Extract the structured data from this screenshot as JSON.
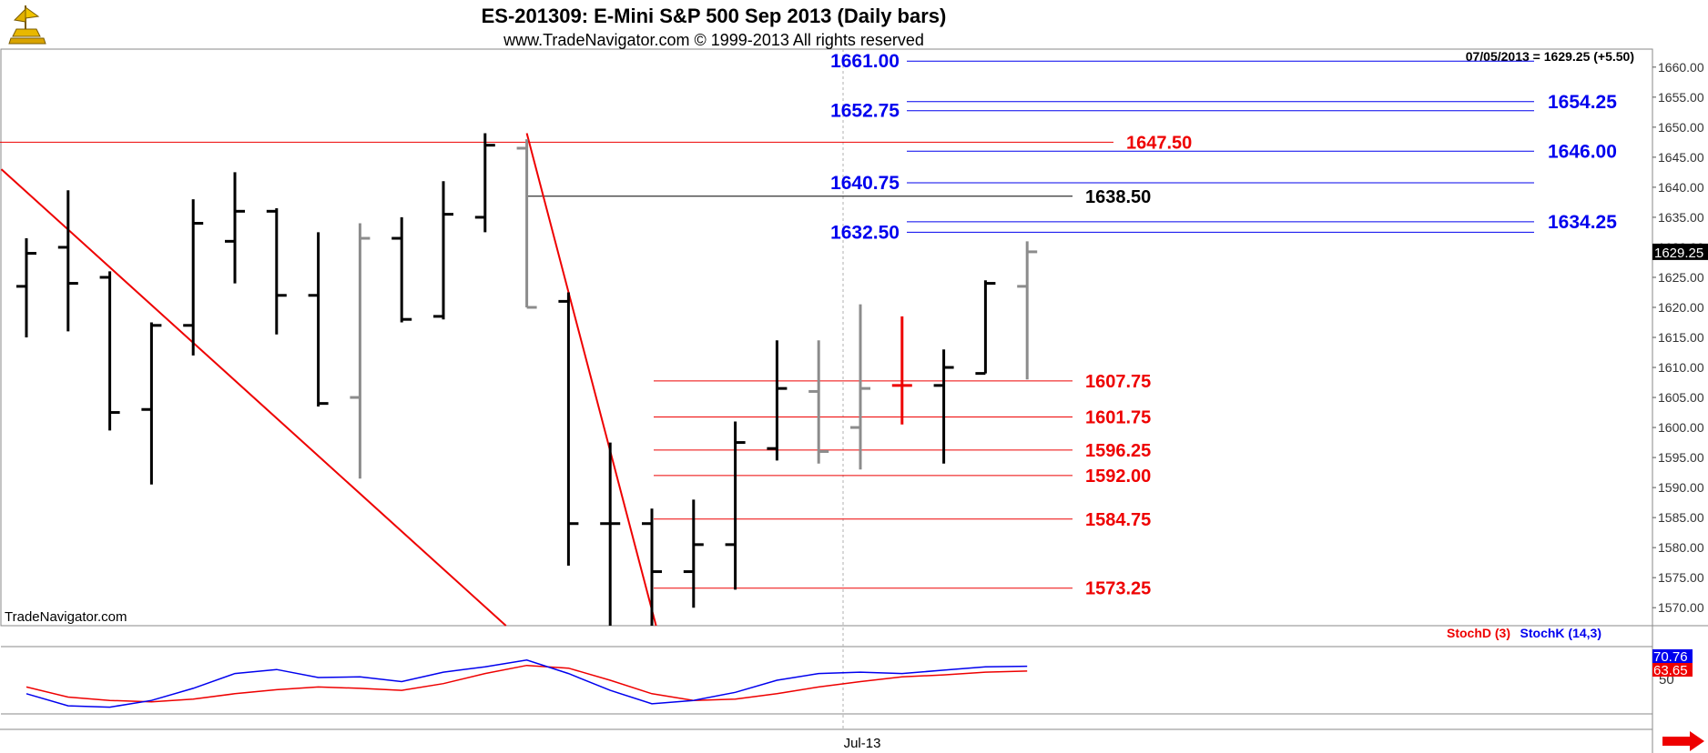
{
  "header": {
    "title": "ES-201309:  E-Mini S&P 500 Sep 2013  (Daily bars)",
    "subtitle": "www.TradeNavigator.com © 1999-2013 All rights reserved",
    "last_quote": "07/05/2013 = 1629.25 (+5.50)",
    "watermark": "TradeNavigator.com"
  },
  "chart_data": [
    {
      "type": "ohlc",
      "ylim": [
        1567,
        1663
      ],
      "y_ticks": [
        1570,
        1575,
        1580,
        1585,
        1590,
        1595,
        1600,
        1605,
        1610,
        1615,
        1620,
        1625,
        1630,
        1635,
        1640,
        1645,
        1650,
        1655,
        1660
      ],
      "y_tick_labels": [
        "1570.00",
        "1575.00",
        "1580.00",
        "1585.00",
        "1590.00",
        "1595.00",
        "1600.00",
        "1605.00",
        "1610.00",
        "1615.00",
        "1620.00",
        "1625.00",
        "1630.00",
        "1635.00",
        "1640.00",
        "1645.00",
        "1650.00",
        "1655.00",
        "1660.00"
      ],
      "x_tick_label": "Jul-13",
      "last_price_label": "1629.25",
      "bars": [
        {
          "o": 1623.5,
          "h": 1631.5,
          "l": 1615.0,
          "c": 1629.0,
          "color": "black"
        },
        {
          "o": 1630.0,
          "h": 1639.5,
          "l": 1616.0,
          "c": 1624.0,
          "color": "black"
        },
        {
          "o": 1625.0,
          "h": 1626.0,
          "l": 1599.5,
          "c": 1602.5,
          "color": "black"
        },
        {
          "o": 1603.0,
          "h": 1617.5,
          "l": 1590.5,
          "c": 1617.0,
          "color": "black"
        },
        {
          "o": 1617.0,
          "h": 1638.0,
          "l": 1612.0,
          "c": 1634.0,
          "color": "black"
        },
        {
          "o": 1631.0,
          "h": 1642.5,
          "l": 1624.0,
          "c": 1636.0,
          "color": "black"
        },
        {
          "o": 1636.0,
          "h": 1636.5,
          "l": 1615.5,
          "c": 1622.0,
          "color": "black"
        },
        {
          "o": 1622.0,
          "h": 1632.5,
          "l": 1603.5,
          "c": 1604.0,
          "color": "black"
        },
        {
          "o": 1605.0,
          "h": 1634.0,
          "l": 1591.5,
          "c": 1631.5,
          "color": "gray"
        },
        {
          "o": 1631.5,
          "h": 1635.0,
          "l": 1617.5,
          "c": 1618.0,
          "color": "black"
        },
        {
          "o": 1618.5,
          "h": 1641.0,
          "l": 1618.0,
          "c": 1635.5,
          "color": "black"
        },
        {
          "o": 1635.0,
          "h": 1649.0,
          "l": 1632.5,
          "c": 1647.0,
          "color": "black"
        },
        {
          "o": 1646.5,
          "h": 1648.0,
          "l": 1620.0,
          "c": 1620.0,
          "color": "gray"
        },
        {
          "o": 1621.0,
          "h": 1622.5,
          "l": 1577.0,
          "c": 1584.0,
          "color": "black"
        },
        {
          "o": 1584.0,
          "h": 1597.5,
          "l": 1565.0,
          "c": 1584.0,
          "color": "black"
        },
        {
          "o": 1584.0,
          "h": 1586.5,
          "l": 1562.0,
          "c": 1576.0,
          "color": "black"
        },
        {
          "o": 1576.0,
          "h": 1588.0,
          "l": 1570.0,
          "c": 1580.5,
          "color": "black"
        },
        {
          "o": 1580.5,
          "h": 1601.0,
          "l": 1573.0,
          "c": 1597.5,
          "color": "black"
        },
        {
          "o": 1596.5,
          "h": 1614.5,
          "l": 1594.5,
          "c": 1606.5,
          "color": "black"
        },
        {
          "o": 1606.0,
          "h": 1614.5,
          "l": 1594.0,
          "c": 1596.0,
          "color": "gray"
        },
        {
          "o": 1600.0,
          "h": 1620.5,
          "l": 1593.0,
          "c": 1606.5,
          "color": "gray"
        },
        {
          "o": 1607.0,
          "h": 1618.5,
          "l": 1600.5,
          "c": 1607.0,
          "color": "red"
        },
        {
          "o": 1607.0,
          "h": 1613.0,
          "l": 1594.0,
          "c": 1610.0,
          "color": "black"
        },
        {
          "o": 1609.0,
          "h": 1624.5,
          "l": 1609.0,
          "c": 1624.0,
          "color": "black"
        },
        {
          "o": 1623.5,
          "h": 1631.0,
          "l": 1608.0,
          "c": 1629.25,
          "color": "gray"
        }
      ],
      "level_lines": [
        {
          "label": "1661.00",
          "value": 1661.0,
          "color": "#0000ee",
          "label_side": "left"
        },
        {
          "label": "1652.75",
          "value": 1652.75,
          "color": "#0000ee",
          "label_side": "left"
        },
        {
          "label": "1640.75",
          "value": 1640.75,
          "color": "#0000ee",
          "label_side": "left"
        },
        {
          "label": "1632.50",
          "value": 1632.5,
          "color": "#0000ee",
          "label_side": "left"
        },
        {
          "label": "1654.25",
          "value": 1654.25,
          "color": "#0000ee",
          "label_side": "right"
        },
        {
          "label": "1646.00",
          "value": 1646.0,
          "color": "#0000ee",
          "label_side": "right"
        },
        {
          "label": "1634.25",
          "value": 1634.25,
          "color": "#0000ee",
          "label_side": "right"
        },
        {
          "label": "1647.50",
          "value": 1647.5,
          "color": "#ee0000",
          "label_side": "end"
        },
        {
          "label": "1638.50",
          "value": 1638.5,
          "color": "#000000",
          "label_side": "end"
        },
        {
          "label": "1607.75",
          "value": 1607.75,
          "color": "#ee0000",
          "label_side": "end"
        },
        {
          "label": "1601.75",
          "value": 1601.75,
          "color": "#ee0000",
          "label_side": "end"
        },
        {
          "label": "1596.25",
          "value": 1596.25,
          "color": "#ee0000",
          "label_side": "end"
        },
        {
          "label": "1592.00",
          "value": 1592.0,
          "color": "#ee0000",
          "label_side": "end"
        },
        {
          "label": "1584.75",
          "value": 1584.75,
          "color": "#ee0000",
          "label_side": "end"
        },
        {
          "label": "1573.25",
          "value": 1573.25,
          "color": "#ee0000",
          "label_side": "end"
        }
      ],
      "trendlines": [
        {
          "from": {
            "bar": -0.6,
            "value": 1643
          },
          "to": {
            "bar": 11.5,
            "value": 1567
          },
          "color": "#ee0000"
        },
        {
          "from": {
            "bar": 12,
            "value": 1649
          },
          "to": {
            "bar": 15.1,
            "value": 1567
          },
          "color": "#ee0000"
        }
      ]
    },
    {
      "type": "line",
      "ylim": [
        0,
        100
      ],
      "y_tick_label": "50",
      "legend": [
        "StochD (3)",
        "StochK (14,3)"
      ],
      "value_labels": [
        "70.76",
        "63.65"
      ],
      "series": [
        {
          "name": "StochD (3)",
          "color": "#ee0000",
          "values": [
            40,
            25,
            20,
            18,
            22,
            30,
            36,
            40,
            38,
            35,
            45,
            60,
            72,
            68,
            50,
            30,
            20,
            22,
            30,
            40,
            48,
            55,
            58,
            62,
            63.65
          ]
        },
        {
          "name": "StochK (14,3)",
          "color": "#0000ee",
          "values": [
            30,
            12,
            10,
            20,
            38,
            60,
            66,
            54,
            55,
            48,
            62,
            70,
            80,
            60,
            35,
            15,
            20,
            32,
            50,
            60,
            62,
            60,
            65,
            70,
            70.76
          ]
        }
      ]
    }
  ]
}
